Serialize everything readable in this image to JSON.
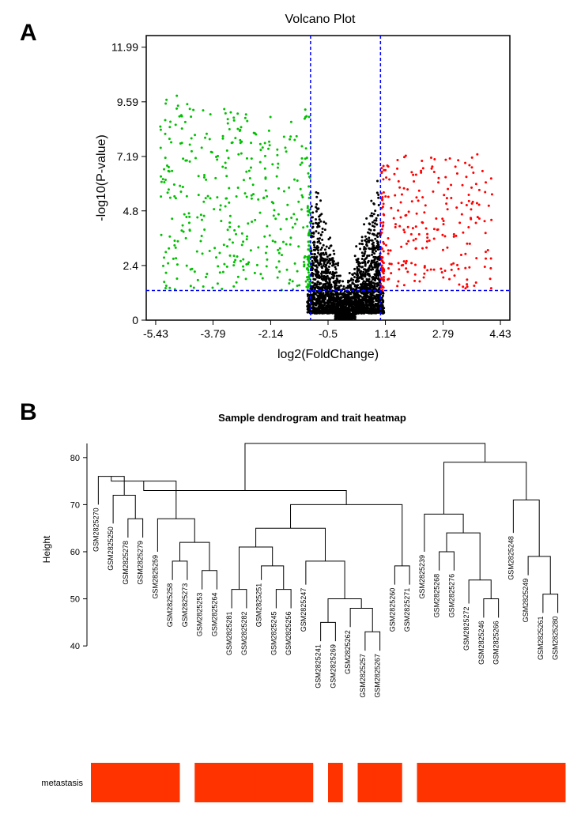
{
  "panelA": {
    "label": "A",
    "title": "Volcano Plot",
    "xlabel": "log2(FoldChange)",
    "ylabel": "-log10(P-value)",
    "xticks": [
      -5.43,
      -3.79,
      -2.14,
      -0.5,
      1.14,
      2.79,
      4.43
    ],
    "yticks": [
      0,
      2.4,
      4.8,
      7.19,
      9.59,
      11.99
    ],
    "xlim": [
      -5.7,
      4.7
    ],
    "ylim": [
      0,
      12.5
    ],
    "threshold_x_neg": -1.0,
    "threshold_x_pos": 1.0,
    "threshold_y": 1.3,
    "colors": {
      "nonsig": "#000000",
      "down": "#00c000",
      "up": "#ff0000",
      "threshold": "#0000ff",
      "axis": "#000000"
    },
    "point_radius": 1.5
  },
  "panelB": {
    "label": "B",
    "title": "Sample dendrogram and trait heatmap",
    "ylabel": "Height",
    "yticks": [
      40,
      50,
      60,
      70,
      80
    ],
    "ylim": [
      37,
      84
    ],
    "trait_label": "metastasis",
    "colors": {
      "trait_on": "#ff3300",
      "trait_off": "#ffffff",
      "line": "#000000"
    },
    "samples": [
      {
        "id": "GSM2825270",
        "x": 0,
        "h": 70,
        "trait": 1
      },
      {
        "id": "GSM2825250",
        "x": 1,
        "h": 66,
        "trait": 1
      },
      {
        "id": "GSM2825278",
        "x": 2,
        "h": 63,
        "trait": 1
      },
      {
        "id": "GSM2825279",
        "x": 3,
        "h": 63,
        "trait": 1
      },
      {
        "id": "GSM2825259",
        "x": 4,
        "h": 60,
        "trait": 1
      },
      {
        "id": "GSM2825258",
        "x": 5,
        "h": 54,
        "trait": 1
      },
      {
        "id": "GSM2825273",
        "x": 6,
        "h": 54,
        "trait": 0
      },
      {
        "id": "GSM2825253",
        "x": 7,
        "h": 52,
        "trait": 1
      },
      {
        "id": "GSM2825264",
        "x": 8,
        "h": 52,
        "trait": 1
      },
      {
        "id": "GSM2825281",
        "x": 9,
        "h": 48,
        "trait": 1
      },
      {
        "id": "GSM2825282",
        "x": 10,
        "h": 48,
        "trait": 1
      },
      {
        "id": "GSM2825251",
        "x": 11,
        "h": 54,
        "trait": 1
      },
      {
        "id": "GSM2825245",
        "x": 12,
        "h": 48,
        "trait": 1
      },
      {
        "id": "GSM2825256",
        "x": 13,
        "h": 48,
        "trait": 1
      },
      {
        "id": "GSM2825247",
        "x": 14,
        "h": 53,
        "trait": 1
      },
      {
        "id": "GSM2825241",
        "x": 15,
        "h": 41,
        "trait": 0
      },
      {
        "id": "GSM2825269",
        "x": 16,
        "h": 41,
        "trait": 1
      },
      {
        "id": "GSM2825262",
        "x": 17,
        "h": 44,
        "trait": 0
      },
      {
        "id": "GSM2825257",
        "x": 18,
        "h": 39,
        "trait": 1
      },
      {
        "id": "GSM2825267",
        "x": 19,
        "h": 39,
        "trait": 1
      },
      {
        "id": "GSM2825260",
        "x": 20,
        "h": 53,
        "trait": 1
      },
      {
        "id": "GSM2825271",
        "x": 21,
        "h": 53,
        "trait": 0
      },
      {
        "id": "GSM2825239",
        "x": 22,
        "h": 60,
        "trait": 1
      },
      {
        "id": "GSM2825268",
        "x": 23,
        "h": 56,
        "trait": 1
      },
      {
        "id": "GSM2825276",
        "x": 24,
        "h": 56,
        "trait": 1
      },
      {
        "id": "GSM2825272",
        "x": 25,
        "h": 49,
        "trait": 1
      },
      {
        "id": "GSM2825246",
        "x": 26,
        "h": 46,
        "trait": 1
      },
      {
        "id": "GSM2825266",
        "x": 27,
        "h": 46,
        "trait": 1
      },
      {
        "id": "GSM2825248",
        "x": 28,
        "h": 64,
        "trait": 1
      },
      {
        "id": "GSM2825249",
        "x": 29,
        "h": 55,
        "trait": 1
      },
      {
        "id": "GSM2825261",
        "x": 30,
        "h": 47,
        "trait": 1
      },
      {
        "id": "GSM2825280",
        "x": 31,
        "h": 47,
        "trait": 1
      }
    ],
    "merges": [
      {
        "left": {
          "leaf": 2
        },
        "right": {
          "leaf": 3
        },
        "h": 67
      },
      {
        "left": {
          "leaf": 1
        },
        "right": {
          "merge": 0
        },
        "h": 72
      },
      {
        "left": {
          "leaf": 0
        },
        "right": {
          "merge": 1
        },
        "h": 76
      },
      {
        "left": {
          "leaf": 5
        },
        "right": {
          "leaf": 6
        },
        "h": 58
      },
      {
        "left": {
          "leaf": 7
        },
        "right": {
          "leaf": 8
        },
        "h": 56
      },
      {
        "left": {
          "merge": 3
        },
        "right": {
          "merge": 4
        },
        "h": 62
      },
      {
        "left": {
          "leaf": 4
        },
        "right": {
          "merge": 5
        },
        "h": 67
      },
      {
        "left": {
          "merge": 2
        },
        "right": {
          "merge": 6
        },
        "h": 75
      },
      {
        "left": {
          "leaf": 9
        },
        "right": {
          "leaf": 10
        },
        "h": 52
      },
      {
        "left": {
          "leaf": 12
        },
        "right": {
          "leaf": 13
        },
        "h": 52
      },
      {
        "left": {
          "leaf": 11
        },
        "right": {
          "merge": 9
        },
        "h": 57
      },
      {
        "left": {
          "merge": 8
        },
        "right": {
          "merge": 10
        },
        "h": 61
      },
      {
        "left": {
          "leaf": 15
        },
        "right": {
          "leaf": 16
        },
        "h": 45
      },
      {
        "left": {
          "leaf": 18
        },
        "right": {
          "leaf": 19
        },
        "h": 43
      },
      {
        "left": {
          "leaf": 17
        },
        "right": {
          "merge": 13
        },
        "h": 48
      },
      {
        "left": {
          "merge": 12
        },
        "right": {
          "merge": 14
        },
        "h": 50
      },
      {
        "left": {
          "leaf": 14
        },
        "right": {
          "merge": 15
        },
        "h": 58
      },
      {
        "left": {
          "merge": 11
        },
        "right": {
          "merge": 16
        },
        "h": 65
      },
      {
        "left": {
          "leaf": 20
        },
        "right": {
          "leaf": 21
        },
        "h": 57
      },
      {
        "left": {
          "merge": 17
        },
        "right": {
          "merge": 18
        },
        "h": 70
      },
      {
        "left": {
          "merge": 7
        },
        "right": {
          "merge": 19
        },
        "h": 73
      },
      {
        "left": {
          "leaf": 23
        },
        "right": {
          "leaf": 24
        },
        "h": 60
      },
      {
        "left": {
          "leaf": 26
        },
        "right": {
          "leaf": 27
        },
        "h": 50
      },
      {
        "left": {
          "leaf": 25
        },
        "right": {
          "merge": 22
        },
        "h": 54
      },
      {
        "left": {
          "merge": 21
        },
        "right": {
          "merge": 23
        },
        "h": 64
      },
      {
        "left": {
          "leaf": 22
        },
        "right": {
          "merge": 24
        },
        "h": 68
      },
      {
        "left": {
          "leaf": 30
        },
        "right": {
          "leaf": 31
        },
        "h": 51
      },
      {
        "left": {
          "leaf": 29
        },
        "right": {
          "merge": 26
        },
        "h": 59
      },
      {
        "left": {
          "leaf": 28
        },
        "right": {
          "merge": 27
        },
        "h": 71
      },
      {
        "left": {
          "merge": 25
        },
        "right": {
          "merge": 28
        },
        "h": 79
      },
      {
        "left": {
          "merge": 20
        },
        "right": {
          "merge": 29
        },
        "h": 83
      }
    ]
  }
}
